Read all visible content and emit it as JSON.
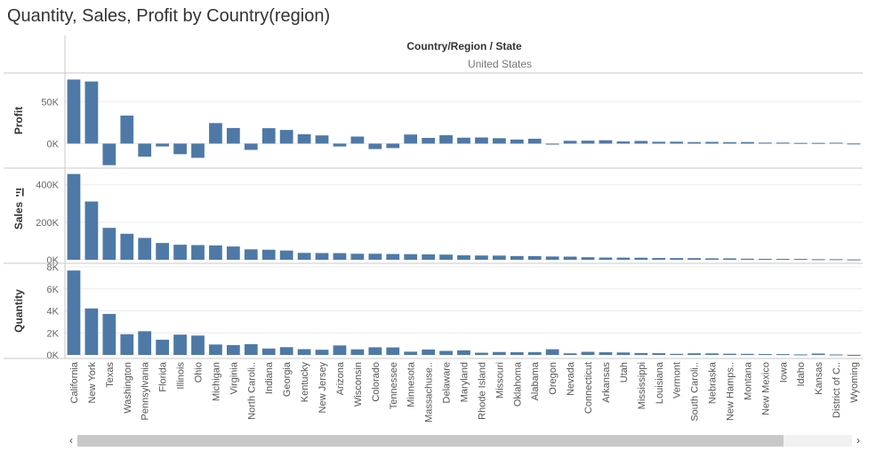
{
  "title": "Quantity, Sales, Profit by Country(region)",
  "header": {
    "column_title": "Country/Region / State",
    "country": "United States"
  },
  "colors": {
    "bar": "#4e79a7",
    "grid": "#ececec",
    "divider": "#c8c8c8",
    "axis_text": "#666666"
  },
  "chart_data": {
    "type": "bar",
    "sort": "sales-descending",
    "categories": [
      "California",
      "New York",
      "Texas",
      "Washington",
      "Pennsylvania",
      "Florida",
      "Illinois",
      "Ohio",
      "Michigan",
      "Virginia",
      "North Caroli..",
      "Indiana",
      "Georgia",
      "Kentucky",
      "New Jersey",
      "Arizona",
      "Wisconsin",
      "Colorado",
      "Tennessee",
      "Minnesota",
      "Massachuse..",
      "Delaware",
      "Maryland",
      "Rhode Island",
      "Missouri",
      "Oklahoma",
      "Alabama",
      "Oregon",
      "Nevada",
      "Connecticut",
      "Arkansas",
      "Utah",
      "Mississippi",
      "Louisiana",
      "Vermont",
      "South Caroli..",
      "Nebraska",
      "New Hamps..",
      "Montana",
      "New Mexico",
      "Iowa",
      "Idaho",
      "Kansas",
      "District of C..",
      "Wyoming"
    ],
    "panes": [
      {
        "measure": "Profit",
        "ylabel": "Profit",
        "ylim": [
          -25000,
          80000
        ],
        "ticks": [
          {
            "v": 50000,
            "label": "50K"
          },
          {
            "v": 0,
            "label": "0K"
          }
        ],
        "values": [
          76381,
          74039,
          -25729,
          33403,
          -15560,
          -3399,
          -12608,
          -16971,
          24463,
          18598,
          -7491,
          18383,
          16250,
          11200,
          9773,
          -3428,
          8402,
          -6528,
          -5342,
          10823,
          6786,
          9977,
          7031,
          7286,
          6436,
          4853,
          5787,
          -1190,
          3317,
          3511,
          4009,
          2547,
          3172,
          2196,
          2245,
          1769,
          2037,
          1707,
          1833,
          1157,
          1184,
          826,
          836,
          1059,
          100
        ]
      },
      {
        "measure": "Sales",
        "ylabel": "Sales",
        "ylim": [
          0,
          470000
        ],
        "ticks": [
          {
            "v": 400000,
            "label": "400K"
          },
          {
            "v": 200000,
            "label": "200K"
          },
          {
            "v": 0,
            "label": "0K"
          }
        ],
        "values": [
          457688,
          310876,
          170188,
          138641,
          116512,
          89474,
          80166,
          78258,
          76270,
          70637,
          55603,
          53556,
          49096,
          36592,
          35764,
          35282,
          32115,
          32108,
          30662,
          29863,
          28634,
          27451,
          23706,
          22628,
          22205,
          19683,
          19511,
          17431,
          16729,
          13384,
          11678,
          11220,
          10771,
          9217,
          8930,
          8482,
          7465,
          7293,
          5589,
          4784,
          4580,
          4382,
          2914,
          2865,
          1603
        ]
      },
      {
        "measure": "Quantity",
        "ylabel": "Quantity",
        "ylim": [
          0,
          8000
        ],
        "ticks": [
          {
            "v": 8000,
            "label": "8K"
          },
          {
            "v": 6000,
            "label": "6K"
          },
          {
            "v": 4000,
            "label": "4K"
          },
          {
            "v": 2000,
            "label": "2K"
          },
          {
            "v": 0,
            "label": "0K"
          }
        ],
        "values": [
          7667,
          4224,
          3724,
          1883,
          2153,
          1379,
          1845,
          1759,
          946,
          893,
          983,
          578,
          705,
          523,
          470,
          862,
          506,
          693,
          681,
          295,
          491,
          367,
          420,
          199,
          265,
          247,
          256,
          514,
          145,
          281,
          240,
          222,
          172,
          156,
          98,
          147,
          137,
          108,
          98,
          82,
          75,
          47,
          125,
          40,
          4
        ]
      }
    ]
  },
  "scrollbar": {
    "left_arrow": "‹",
    "right_arrow": "›"
  }
}
